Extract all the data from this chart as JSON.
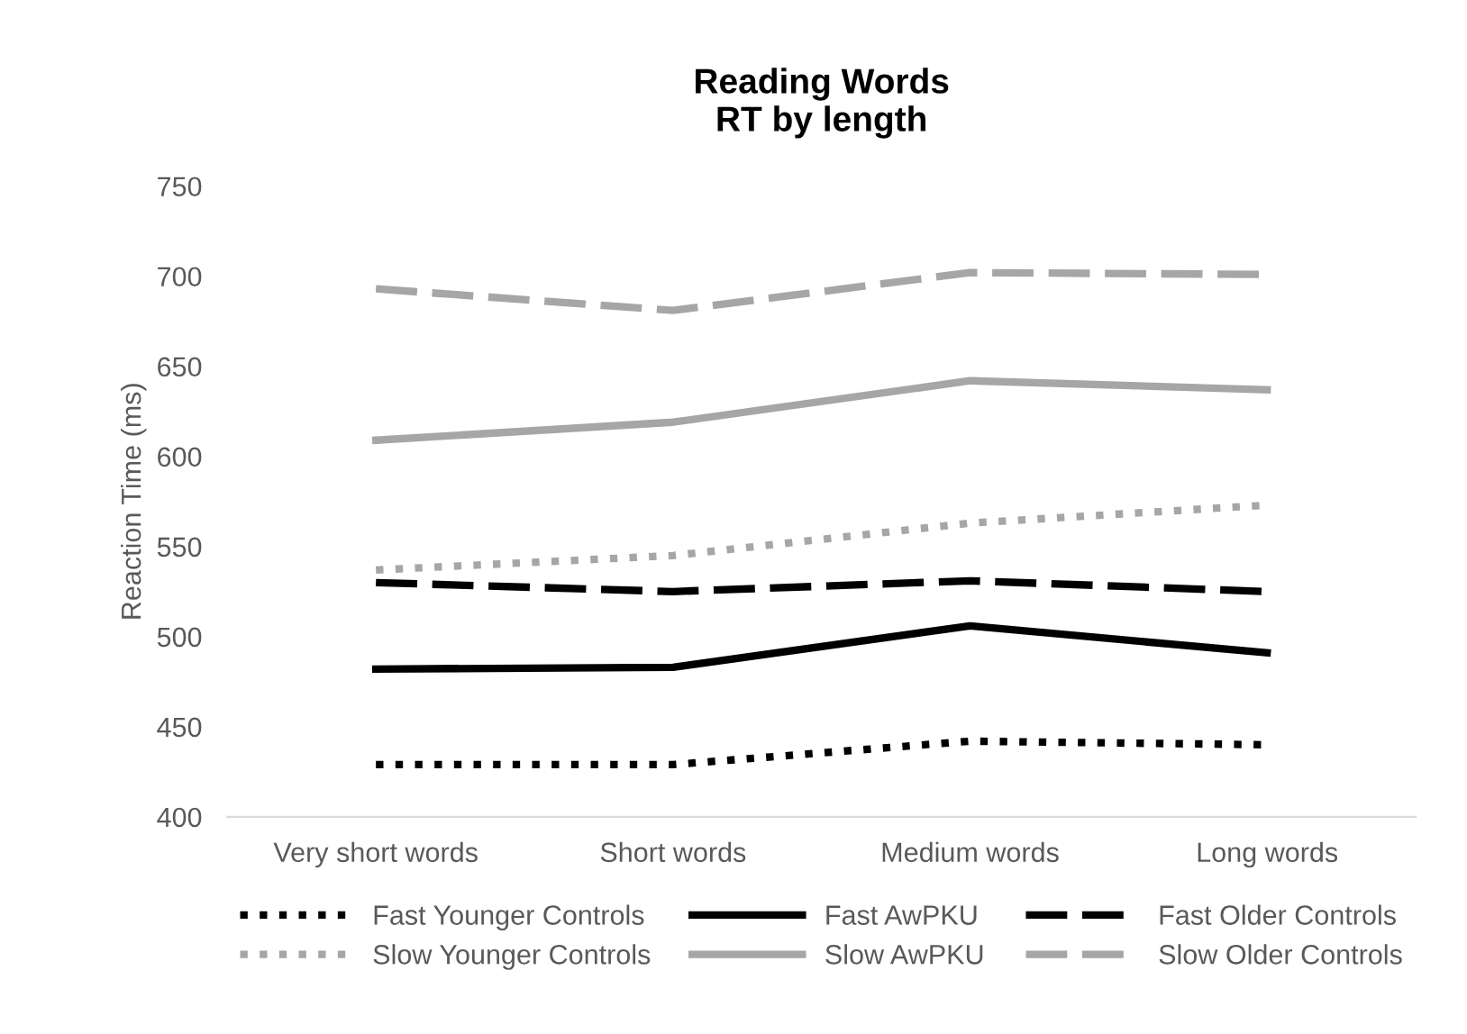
{
  "chart_data": {
    "type": "line",
    "title": "Reading Words\nRT by length",
    "ylabel": "Reaction Time (ms)",
    "categories": [
      "Very short words",
      "Short words",
      "Medium words",
      "Long words"
    ],
    "series": [
      {
        "name": "Fast Younger Controls",
        "color": "#000000",
        "line_style": "dotted",
        "values": [
          429,
          429,
          442,
          440
        ]
      },
      {
        "name": "Slow Younger Controls",
        "color": "#a6a6a6",
        "line_style": "dotted",
        "values": [
          537,
          545,
          563,
          573
        ]
      },
      {
        "name": "Fast AwPKU",
        "color": "#000000",
        "line_style": "solid",
        "values": [
          482,
          483,
          506,
          491
        ]
      },
      {
        "name": "Slow AwPKU",
        "color": "#a6a6a6",
        "line_style": "solid",
        "values": [
          609,
          619,
          642,
          637
        ]
      },
      {
        "name": "Fast Older Controls",
        "color": "#000000",
        "line_style": "dashed",
        "values": [
          530,
          525,
          531,
          525
        ]
      },
      {
        "name": "Slow Older Controls",
        "color": "#a6a6a6",
        "line_style": "dashed",
        "values": [
          693,
          681,
          702,
          701
        ]
      }
    ],
    "ylim": [
      400,
      750
    ],
    "yticks": [
      400,
      450,
      500,
      550,
      600,
      650,
      700,
      750
    ],
    "grid": false,
    "legend": "bottom",
    "marker": "none"
  }
}
